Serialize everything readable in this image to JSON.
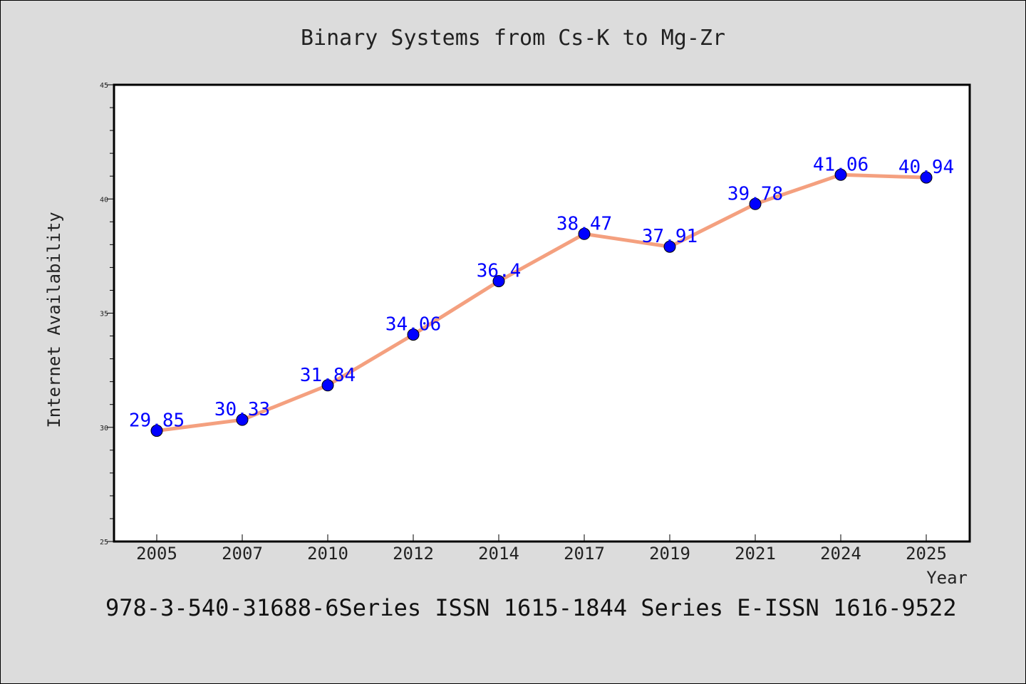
{
  "chart_data": {
    "type": "line",
    "title": "Binary Systems from Cs-K to Mg-Zr",
    "xlabel": "Year",
    "ylabel": "Internet Availability",
    "categories": [
      "2005",
      "2007",
      "2010",
      "2012",
      "2014",
      "2017",
      "2019",
      "2021",
      "2024",
      "2025"
    ],
    "series": [
      {
        "values": [
          29.85,
          30.33,
          31.84,
          34.06,
          36.4,
          38.47,
          37.91,
          39.78,
          41.06,
          40.94
        ],
        "line_color": "#f4a07f",
        "marker_color": "#0000ff"
      }
    ],
    "data_labels": [
      "29.85",
      "30.33",
      "31.84",
      "34.06",
      "36.4",
      "38.47",
      "37.91",
      "39.78",
      "41.06",
      "40.94"
    ],
    "ylim": [
      25,
      45
    ],
    "yticks": [
      25,
      30,
      35,
      40,
      45
    ],
    "ytick_labels": [
      "25",
      "30",
      "35",
      "40",
      "45"
    ],
    "grid": false,
    "legend": "none"
  },
  "footer": "978-3-540-31688-6Series ISSN 1615-1844 Series E-ISSN 1616-9522"
}
